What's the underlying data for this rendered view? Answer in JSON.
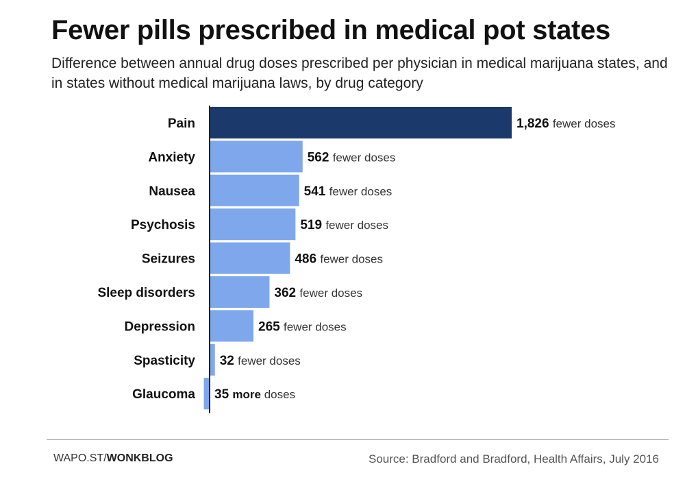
{
  "title": "Fewer pills prescribed in medical pot states",
  "subtitle": "Difference between annual drug doses prescribed per physician in medical marijuana states, and in states without medical marijuana laws, by drug category",
  "footer": {
    "credit_prefix": "WAPO.ST/",
    "credit_bold": "WONKBLOG",
    "source": "Source: Bradford and Bradford, Health Affairs, July 2016"
  },
  "colors": {
    "highlight": "#1b3a6b",
    "bar": "#7ea7ec",
    "axis": "#222222"
  },
  "chart_data": {
    "type": "bar",
    "orientation": "horizontal",
    "title": "Fewer pills prescribed in medical pot states",
    "categories": [
      "Pain",
      "Anxiety",
      "Nausea",
      "Psychosis",
      "Seizures",
      "Sleep disorders",
      "Depression",
      "Spasticity",
      "Glaucoma"
    ],
    "values": [
      1826,
      562,
      541,
      519,
      486,
      362,
      265,
      32,
      -35
    ],
    "value_labels": [
      "1,826",
      "562",
      "541",
      "519",
      "486",
      "362",
      "265",
      "32",
      "35"
    ],
    "suffixes": [
      "fewer doses",
      "fewer doses",
      "fewer doses",
      "fewer doses",
      "fewer doses",
      "fewer doses",
      "fewer doses",
      "fewer doses",
      "more doses"
    ],
    "highlight_index": 0,
    "xlim": [
      -35,
      1826
    ],
    "grid": false,
    "legend": "none"
  }
}
